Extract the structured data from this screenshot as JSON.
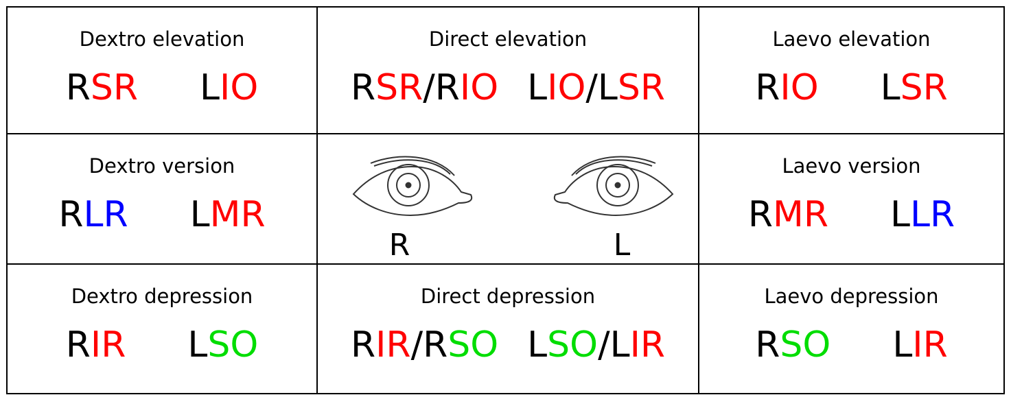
{
  "rows": [
    [
      {
        "title": "Dextro elevation",
        "labels": [
          [
            {
              "text": "R",
              "color": "#000000"
            },
            {
              "text": "SR",
              "color": "#ff0000"
            }
          ],
          [
            {
              "text": "L",
              "color": "#000000"
            },
            {
              "text": "IO",
              "color": "#ff0000"
            }
          ]
        ]
      },
      {
        "title": "Direct elevation",
        "labels": [
          [
            {
              "text": "R",
              "color": "#000000"
            },
            {
              "text": "SR",
              "color": "#ff0000"
            },
            {
              "text": "/R",
              "color": "#000000"
            },
            {
              "text": "IO",
              "color": "#ff0000"
            }
          ],
          [
            {
              "text": "L",
              "color": "#000000"
            },
            {
              "text": "IO",
              "color": "#ff0000"
            },
            {
              "text": "/L",
              "color": "#000000"
            },
            {
              "text": "SR",
              "color": "#ff0000"
            }
          ]
        ]
      },
      {
        "title": "Laevo elevation",
        "labels": [
          [
            {
              "text": "R",
              "color": "#000000"
            },
            {
              "text": "IO",
              "color": "#ff0000"
            }
          ],
          [
            {
              "text": "L",
              "color": "#000000"
            },
            {
              "text": "SR",
              "color": "#ff0000"
            }
          ]
        ]
      }
    ],
    [
      {
        "title": "Dextro version",
        "labels": [
          [
            {
              "text": "R",
              "color": "#000000"
            },
            {
              "text": "LR",
              "color": "#0000ff"
            }
          ],
          [
            {
              "text": "L",
              "color": "#000000"
            },
            {
              "text": "MR",
              "color": "#ff0000"
            }
          ]
        ]
      },
      {
        "eyes": [
          "R",
          "L"
        ]
      },
      {
        "title": "Laevo version",
        "labels": [
          [
            {
              "text": "R",
              "color": "#000000"
            },
            {
              "text": "MR",
              "color": "#ff0000"
            }
          ],
          [
            {
              "text": "L",
              "color": "#000000"
            },
            {
              "text": "LR",
              "color": "#0000ff"
            }
          ]
        ]
      }
    ],
    [
      {
        "title": "Dextro depression",
        "labels": [
          [
            {
              "text": "R",
              "color": "#000000"
            },
            {
              "text": "IR",
              "color": "#ff0000"
            }
          ],
          [
            {
              "text": "L",
              "color": "#000000"
            },
            {
              "text": "SO",
              "color": "#00dd00"
            }
          ]
        ]
      },
      {
        "title": "Direct depression",
        "labels": [
          [
            {
              "text": "R",
              "color": "#000000"
            },
            {
              "text": "IR",
              "color": "#ff0000"
            },
            {
              "text": "/R",
              "color": "#000000"
            },
            {
              "text": "SO",
              "color": "#00dd00"
            }
          ],
          [
            {
              "text": "L",
              "color": "#000000"
            },
            {
              "text": "SO",
              "color": "#00dd00"
            },
            {
              "text": "/L",
              "color": "#000000"
            },
            {
              "text": "IR",
              "color": "#ff0000"
            }
          ]
        ]
      },
      {
        "title": "Laevo depression",
        "labels": [
          [
            {
              "text": "R",
              "color": "#000000"
            },
            {
              "text": "SO",
              "color": "#00dd00"
            }
          ],
          [
            {
              "text": "L",
              "color": "#000000"
            },
            {
              "text": "IR",
              "color": "#ff0000"
            }
          ]
        ]
      }
    ]
  ]
}
